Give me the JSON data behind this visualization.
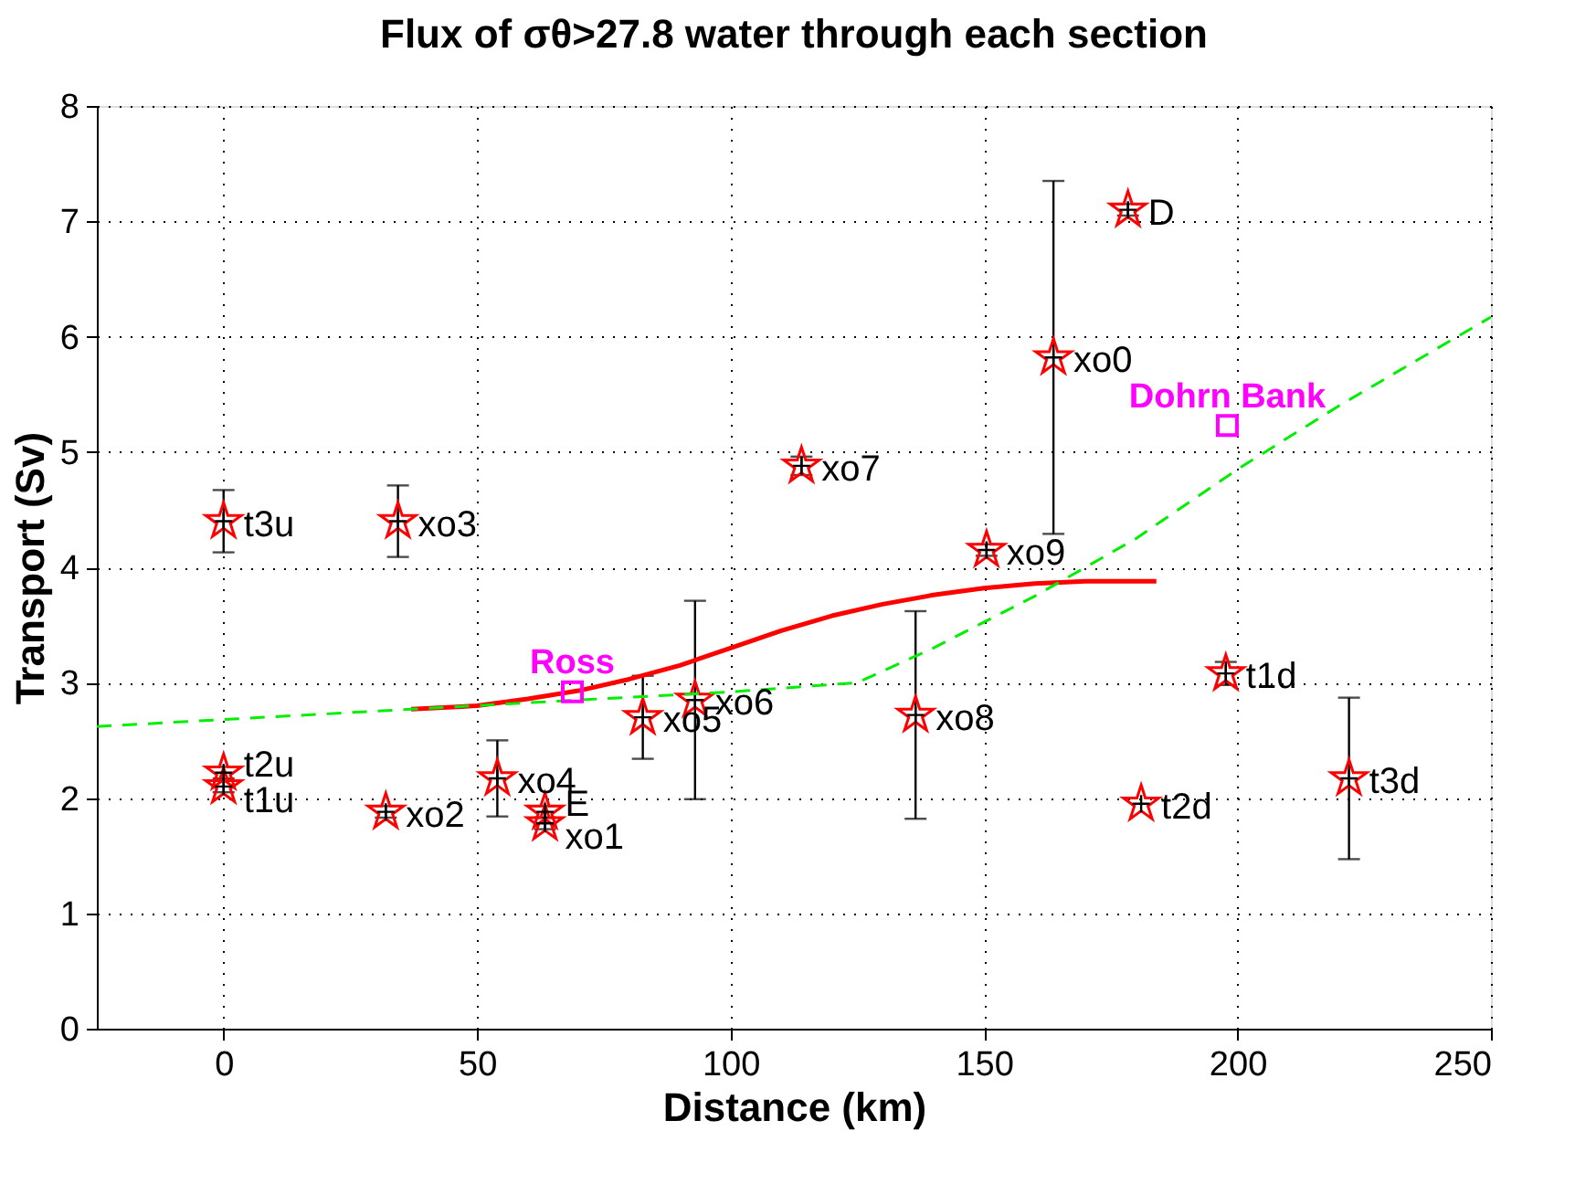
{
  "chart_data": {
    "type": "scatter",
    "title": "Flux of σθ>27.8 water through each section",
    "xlabel": "Distance (km)",
    "ylabel": "Transport (Sv)",
    "xlim": [
      -25,
      250
    ],
    "xticks": [
      0,
      50,
      100,
      150,
      200,
      250
    ],
    "ylim": [
      0,
      8
    ],
    "yticks": [
      0,
      1,
      2,
      3,
      4,
      5,
      6,
      7,
      8
    ],
    "grid": true,
    "series": [
      {
        "type": "scatter",
        "color": "#ff0000",
        "marker": "star",
        "x": [
          0,
          34.4,
          0,
          0,
          32,
          54,
          63.4,
          63.4,
          82.7,
          93,
          114,
          136.5,
          150.5,
          163.7,
          178.4,
          197.7,
          181,
          222
        ],
        "values": [
          4.4,
          4.4,
          2.22,
          2.1,
          1.88,
          2.17,
          1.88,
          1.78,
          2.7,
          2.85,
          4.88,
          2.72,
          4.15,
          5.82,
          7.1,
          3.08,
          1.95,
          2.17
        ],
        "errors": [
          0.27,
          0.31,
          0.05,
          0.05,
          0.05,
          0.33,
          0.05,
          0.05,
          0.36,
          0.86,
          0.08,
          0.9,
          0.05,
          1.53,
          0.05,
          0.1,
          null,
          0.7
        ]
      },
      {
        "type": "line",
        "color": "#ff0000",
        "line_style": "solid",
        "x": [
          37,
          50,
          60,
          70,
          80,
          90,
          100,
          110,
          120,
          130,
          140,
          150,
          160,
          170,
          184
        ],
        "values": [
          2.77,
          2.8,
          2.86,
          2.93,
          3.03,
          3.15,
          3.3,
          3.45,
          3.58,
          3.68,
          3.76,
          3.82,
          3.86,
          3.88,
          3.88
        ]
      },
      {
        "type": "line",
        "color": "#00ee00",
        "line_style": "dashed",
        "x": [
          -25,
          37,
          70,
          100,
          125,
          140,
          160,
          180,
          200,
          220,
          250
        ],
        "values": [
          2.62,
          2.77,
          2.85,
          2.92,
          3.0,
          3.3,
          3.75,
          4.25,
          4.85,
          5.4,
          6.17
        ]
      },
      {
        "type": "scatter",
        "color": "#ff00ff",
        "marker": "square",
        "x": [
          68.8,
          198
        ],
        "values": [
          2.92,
          5.23
        ]
      }
    ],
    "annotations": [
      {
        "text": "t3u",
        "x": 0,
        "y": 4.4
      },
      {
        "text": "xo3",
        "x": 34.4,
        "y": 4.4
      },
      {
        "text": "t2u",
        "x": 0,
        "y": 2.22
      },
      {
        "text": "t1u",
        "x": 0,
        "y": 2.1
      },
      {
        "text": "xo2",
        "x": 32,
        "y": 1.88
      },
      {
        "text": "xo4",
        "x": 54,
        "y": 2.17
      },
      {
        "text": "E",
        "x": 63.4,
        "y": 1.88
      },
      {
        "text": "xo1",
        "x": 63.4,
        "y": 1.78
      },
      {
        "text": "xo5",
        "x": 82.7,
        "y": 2.7
      },
      {
        "text": "xo6",
        "x": 93,
        "y": 2.85
      },
      {
        "text": "xo7",
        "x": 114,
        "y": 4.88
      },
      {
        "text": "xo8",
        "x": 136.5,
        "y": 2.72
      },
      {
        "text": "xo9",
        "x": 150.5,
        "y": 4.15
      },
      {
        "text": "xo0",
        "x": 163.7,
        "y": 5.82
      },
      {
        "text": "D",
        "x": 178.4,
        "y": 7.1
      },
      {
        "text": "t1d",
        "x": 197.7,
        "y": 3.08
      },
      {
        "text": "t2d",
        "x": 181,
        "y": 1.95
      },
      {
        "text": "t3d",
        "x": 222,
        "y": 2.17
      },
      {
        "text": "Ross",
        "x": 68.8,
        "y": 2.92
      },
      {
        "text": "Dohrn Bank",
        "x": 198,
        "y": 5.23
      }
    ]
  }
}
